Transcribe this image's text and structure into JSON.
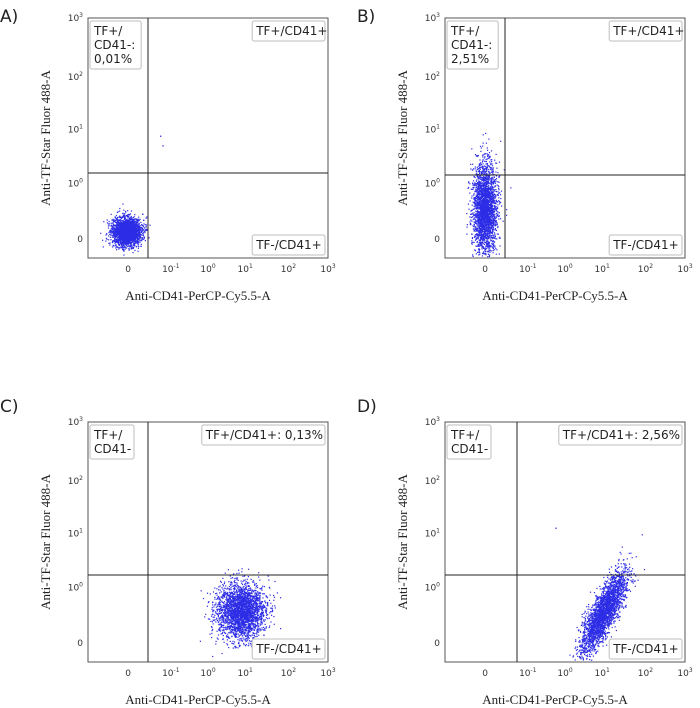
{
  "chart_data": [
    {
      "type": "scatter",
      "panel": "A)",
      "xlabel": "Anti-CD41-PerCP-Cy5.5-A",
      "ylabel": "Anti-TF-Star Fluor 488-A",
      "x_ticks": [
        "0",
        "10-1",
        "100",
        "101",
        "102",
        "103"
      ],
      "y_ticks": [
        "0",
        "100",
        "101",
        "102",
        "103"
      ],
      "quadrant_labels": {
        "top_left": [
          "TF+/",
          "CD41-:",
          "0,01%"
        ],
        "top_right": [
          "TF+/CD41+"
        ],
        "bottom_right": [
          "TF-/CD41+"
        ]
      },
      "population": {
        "x_center": 0.0,
        "y_center": 0.1,
        "x_spread": 0.14,
        "y_spread": 0.13,
        "density": "high"
      },
      "color": "#2d2de6"
    },
    {
      "type": "scatter",
      "panel": "B)",
      "xlabel": "Anti-CD41-PerCP-Cy5.5-A",
      "ylabel": "Anti-TF-Star Fluor 488-A",
      "x_ticks": [
        "0",
        "10-1",
        "100",
        "101",
        "102",
        "103"
      ],
      "y_ticks": [
        "0",
        "100",
        "101",
        "102",
        "103"
      ],
      "quadrant_labels": {
        "top_left": [
          "TF+/",
          "CD41-:",
          "2,51%"
        ],
        "top_right": [
          "TF+/CD41+"
        ],
        "bottom_right": [
          "TF-/CD41+"
        ]
      },
      "population": {
        "x_center": 0.0,
        "y_center": 0.45,
        "x_spread": 0.11,
        "y_spread": 0.55,
        "density": "high"
      },
      "color": "#2d2de6"
    },
    {
      "type": "scatter",
      "panel": "C)",
      "xlabel": "Anti-CD41-PerCP-Cy5.5-A",
      "ylabel": "Anti-TF-Star Fluor 488-A",
      "x_ticks": [
        "0",
        "10-1",
        "100",
        "101",
        "102",
        "103"
      ],
      "y_ticks": [
        "0",
        "100",
        "101",
        "102",
        "103"
      ],
      "quadrant_labels": {
        "top_left": [
          "TF+/",
          "CD41-"
        ],
        "top_right": [
          "TF+/CD41+: 0,13%"
        ],
        "bottom_right": [
          "TF-/CD41+"
        ]
      },
      "population": {
        "x_center": 0.65,
        "y_center": 0.35,
        "x_spread": 0.22,
        "y_spread": 0.4,
        "density": "high"
      },
      "color": "#2d2de6"
    },
    {
      "type": "scatter",
      "panel": "D)",
      "xlabel": "Anti-CD41-PerCP-Cy5.5-A",
      "ylabel": "Anti-TF-Star Fluor 488-A",
      "x_ticks": [
        "0",
        "10-1",
        "100",
        "101",
        "102",
        "103"
      ],
      "y_ticks": [
        "0",
        "100",
        "101",
        "102",
        "103"
      ],
      "quadrant_labels": {
        "top_left": [
          "TF+/",
          "CD41-"
        ],
        "top_right": [
          "TF+/CD41+: 2,56%"
        ],
        "bottom_right": [
          "TF-/CD41+"
        ]
      },
      "population": {
        "x_center": 0.8,
        "y_center": 0.4,
        "x_spread": 0.3,
        "y_spread": 0.45,
        "density": "high",
        "shape": "diagonal"
      },
      "color": "#2d2de6"
    }
  ]
}
